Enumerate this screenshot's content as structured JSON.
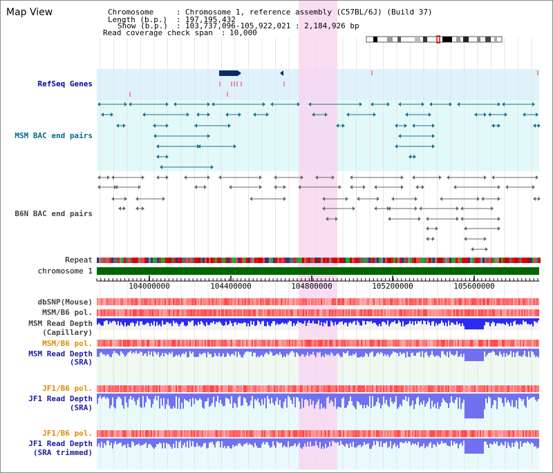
{
  "view_title": "Map View",
  "info": {
    "chromosome_key": "Chromosome",
    "chromosome_val": "Chromosome 1, reference assembly (C57BL/6J) (Build 37)",
    "length_key": "Length (b.p.)",
    "length_val": "197,195,432",
    "show_key": "Show (b.p.)",
    "show_val": "103,737,096-105,922,021 : 2,184,926 bp",
    "span_key": "Read coverage check span",
    "span_val": "10,000"
  },
  "tracks": {
    "refseq": "RefSeq Genes",
    "msm_bac": "MSM BAC end pairs",
    "b6n_bac": "B6N BAC end pairs",
    "repeat": "Repeat",
    "chromosome": "chromosome 1",
    "dbsnp": "dbSNP(Mouse)",
    "msm_b6_pol_1": "MSM/B6 pol.",
    "msm_depth_cap_1": "MSM Read Depth",
    "msm_depth_cap_2": "(Capillary)",
    "msm_b6_pol_2": "MSM/B6 pol.",
    "msm_depth_sra_1": "MSM Read Depth",
    "msm_depth_sra_2": "(SRA)",
    "jf1_b6_pol_1": "JF1/B6 pol.",
    "jf1_depth_sra_1": "JF1 Read Depth",
    "jf1_depth_sra_2": "(SRA)",
    "jf1_b6_pol_2": "JF1/B6 pol.",
    "jf1_depth_trim_1": "JF1 Read Depth",
    "jf1_depth_trim_2": "(SRA trimmed)"
  },
  "axis_ticks": [
    "104000000",
    "104400000",
    "104800000",
    "105200000",
    "105600000"
  ],
  "colors": {
    "highlight": "#f8d4f0",
    "refseq_bg": "#dff1fb",
    "msm_bac_bg": "#e2f9f9",
    "chromosome_bar": "#006600",
    "depth_capillary": "#2a2af0",
    "depth_sra": "#7070f0"
  }
}
